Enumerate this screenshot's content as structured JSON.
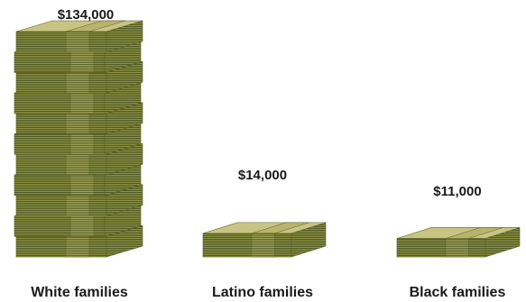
{
  "chart_data": {
    "type": "bar",
    "categories": [
      "White families",
      "Latino families",
      "Black families"
    ],
    "values": [
      134000,
      14000,
      11000
    ],
    "value_labels": [
      "$134,000",
      "$14,000",
      "$11,000"
    ],
    "colors": {
      "top": "#c8c484",
      "side": "#8f9446",
      "stripe": "#3f4a1a",
      "band_top": "#b9b36e",
      "band_side": "#a2a45a",
      "outline": "#5a5f24"
    }
  }
}
